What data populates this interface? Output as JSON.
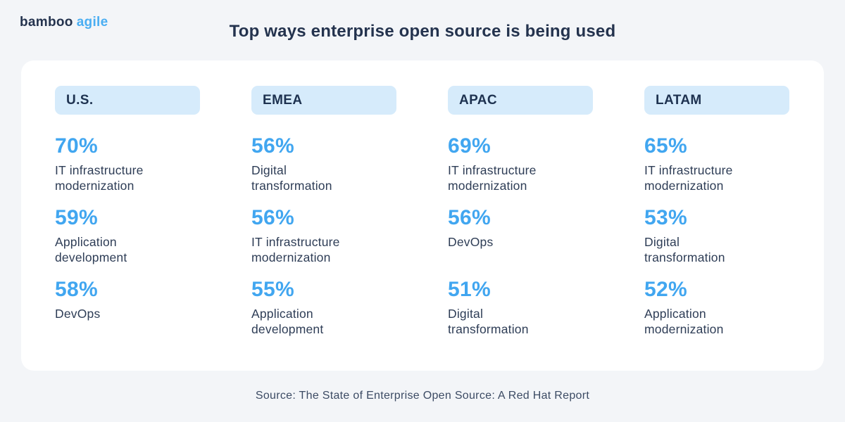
{
  "logo": {
    "part1": "bamboo",
    "part2": "agile"
  },
  "title": "Top ways enterprise open source is being used",
  "source": "Source: The State of Enterprise Open Source: A Red Hat Report",
  "colors": {
    "background": "#f3f5f8",
    "card": "#ffffff",
    "badge_background": "#d6ebfb",
    "accent_blue": "#41a6f0",
    "navy_text": "#24334e",
    "label_text": "#2e3d56"
  },
  "regions": [
    {
      "badge": "U.S.",
      "stats": [
        {
          "value": "70%",
          "label": "IT infrastructure modernization"
        },
        {
          "value": "59%",
          "label": "Application development"
        },
        {
          "value": "58%",
          "label": "DevOps"
        }
      ]
    },
    {
      "badge": "EMEA",
      "stats": [
        {
          "value": "56%",
          "label": "Digital transformation"
        },
        {
          "value": "56%",
          "label": "IT infrastructure modernization"
        },
        {
          "value": "55%",
          "label": "Application development"
        }
      ]
    },
    {
      "badge": "APAC",
      "stats": [
        {
          "value": "69%",
          "label": "IT infrastructure modernization"
        },
        {
          "value": "56%",
          "label": "DevOps"
        },
        {
          "value": "51%",
          "label": "Digital transformation"
        }
      ]
    },
    {
      "badge": "LATAM",
      "stats": [
        {
          "value": "65%",
          "label": "IT infrastructure modernization"
        },
        {
          "value": "53%",
          "label": "Digital transformation"
        },
        {
          "value": "52%",
          "label": "Application modernization"
        }
      ]
    }
  ],
  "chart_data": {
    "type": "table",
    "title": "Top ways enterprise open source is being used",
    "columns": [
      "U.S.",
      "EMEA",
      "APAC",
      "LATAM"
    ],
    "unit": "percent",
    "regions": [
      {
        "region": "U.S.",
        "entries": [
          {
            "use": "IT infrastructure modernization",
            "percent": 70
          },
          {
            "use": "Application development",
            "percent": 59
          },
          {
            "use": "DevOps",
            "percent": 58
          }
        ]
      },
      {
        "region": "EMEA",
        "entries": [
          {
            "use": "Digital transformation",
            "percent": 56
          },
          {
            "use": "IT infrastructure modernization",
            "percent": 56
          },
          {
            "use": "Application development",
            "percent": 55
          }
        ]
      },
      {
        "region": "APAC",
        "entries": [
          {
            "use": "IT infrastructure modernization",
            "percent": 69
          },
          {
            "use": "DevOps",
            "percent": 56
          },
          {
            "use": "Digital transformation",
            "percent": 51
          }
        ]
      },
      {
        "region": "LATAM",
        "entries": [
          {
            "use": "IT infrastructure modernization",
            "percent": 65
          },
          {
            "use": "Digital transformation",
            "percent": 53
          },
          {
            "use": "Application modernization",
            "percent": 52
          }
        ]
      }
    ],
    "source": "The State of Enterprise Open Source: A Red Hat Report"
  }
}
